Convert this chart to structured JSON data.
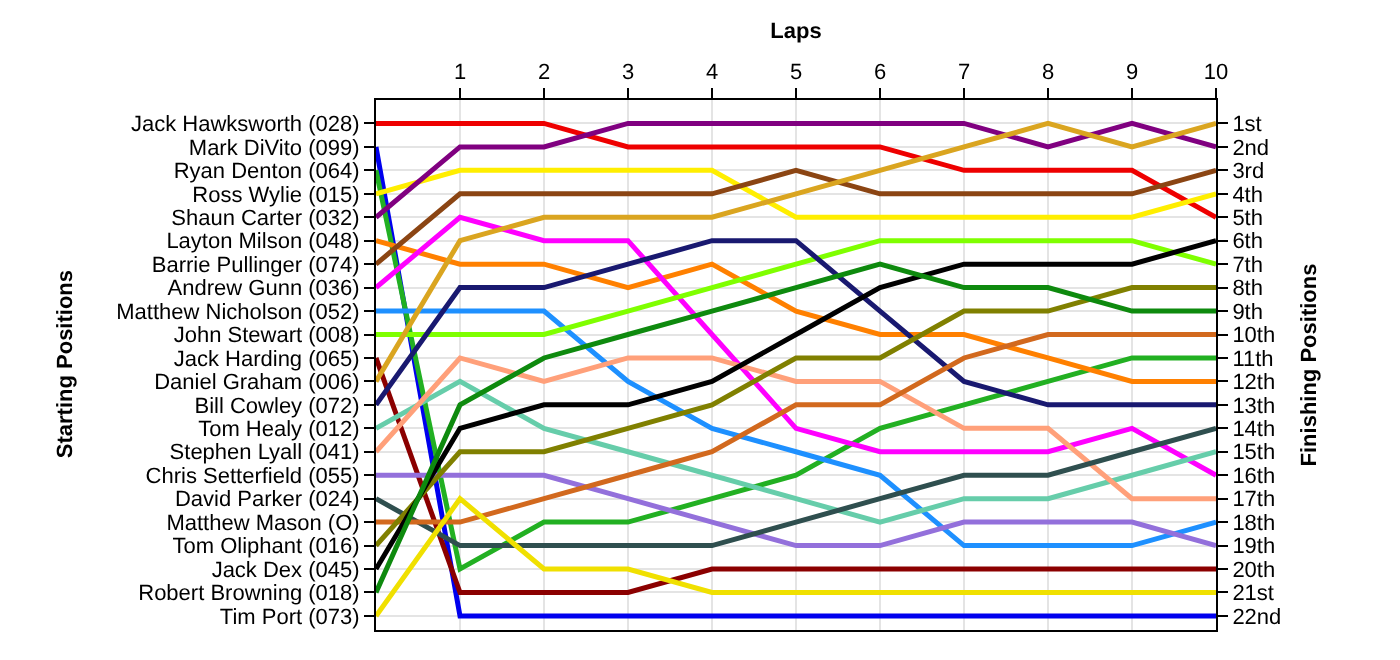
{
  "chart_data": {
    "type": "line",
    "xlabel": "Laps",
    "annotations": [
      "Starting Positions"
    ],
    "y2label": "Finishing Positions",
    "x": [
      0,
      1,
      2,
      3,
      4,
      5,
      6,
      7,
      8,
      9,
      10
    ],
    "xlim": [
      0,
      10
    ],
    "xticks": [
      1,
      2,
      3,
      4,
      5,
      6,
      7,
      8,
      9,
      10
    ],
    "y_categories": [
      "Jack Hawksworth (028)",
      "Mark DiVito (099)",
      "Ryan Denton (064)",
      "Ross Wylie (015)",
      "Shaun Carter (032)",
      "Layton Milson (048)",
      "Barrie Pullinger (074)",
      "Andrew Gunn (036)",
      "Matthew Nicholson (052)",
      "John Stewart (008)",
      "Jack Harding (065)",
      "Daniel Graham (006)",
      "Bill Cowley (072)",
      "Tom Healy (012)",
      "Stephen Lyall (041)",
      "Chris Setterfield (055)",
      "David Parker (024)",
      "Matthew Mason (O)",
      "Tom Oliphant (016)",
      "Jack Dex (045)",
      "Robert Browning (018)",
      "Tim Port (073)"
    ],
    "y2lim": [
      22.6,
      0
    ],
    "y2ticks": [
      {
        "value": 1,
        "label": "1st"
      },
      {
        "value": 2,
        "label": "2nd"
      },
      {
        "value": 3,
        "label": "3rd"
      },
      {
        "value": 4,
        "label": "4th"
      },
      {
        "value": 5,
        "label": "5th"
      },
      {
        "value": 6,
        "label": "6th"
      },
      {
        "value": 7,
        "label": "7th"
      },
      {
        "value": 8,
        "label": "8th"
      },
      {
        "value": 9,
        "label": "9th"
      },
      {
        "value": 10,
        "label": "10th"
      },
      {
        "value": 11,
        "label": "11th"
      },
      {
        "value": 12,
        "label": "12th"
      },
      {
        "value": 13,
        "label": "13th"
      },
      {
        "value": 14,
        "label": "14th"
      },
      {
        "value": 15,
        "label": "15th"
      },
      {
        "value": 16,
        "label": "16th"
      },
      {
        "value": 17,
        "label": "17th"
      },
      {
        "value": 18,
        "label": "18th"
      },
      {
        "value": 19,
        "label": "19th"
      },
      {
        "value": 20,
        "label": "20th"
      },
      {
        "value": 21,
        "label": "21st"
      },
      {
        "value": 22,
        "label": "22nd"
      }
    ],
    "grid": true,
    "marker": "none",
    "line_style": "solid",
    "series": [
      {
        "axis": "y2",
        "color": "#ee0000",
        "values": [
          1,
          1,
          1,
          2,
          2,
          2,
          2,
          3,
          3,
          3,
          5
        ]
      },
      {
        "axis": "y2",
        "color": "#0000ee",
        "values": [
          2,
          22,
          22,
          22,
          22,
          22,
          22,
          22,
          22,
          22,
          22
        ]
      },
      {
        "axis": "y2",
        "color": "#22b022",
        "values": [
          3,
          20,
          18,
          18,
          17,
          16,
          14,
          13,
          12,
          11,
          11
        ]
      },
      {
        "axis": "y2",
        "color": "#ffee00",
        "values": [
          4,
          3,
          3,
          3,
          3,
          5,
          5,
          5,
          5,
          5,
          4
        ]
      },
      {
        "axis": "y2",
        "color": "#800080",
        "values": [
          5,
          2,
          2,
          1,
          1,
          1,
          1,
          1,
          2,
          1,
          2
        ]
      },
      {
        "axis": "y2",
        "color": "#ff8000",
        "values": [
          6,
          7,
          7,
          8,
          7,
          9,
          10,
          10,
          11,
          12,
          12
        ]
      },
      {
        "axis": "y2",
        "color": "#8b4513",
        "values": [
          7,
          4,
          4,
          4,
          4,
          3,
          4,
          4,
          4,
          4,
          3
        ]
      },
      {
        "axis": "y2",
        "color": "#ff00ff",
        "values": [
          8,
          5,
          6,
          6,
          10,
          14,
          15,
          15,
          15,
          14,
          16
        ]
      },
      {
        "axis": "y2",
        "color": "#1e90ff",
        "values": [
          9,
          9,
          9,
          12,
          14,
          15,
          16,
          19,
          19,
          19,
          18
        ]
      },
      {
        "axis": "y2",
        "color": "#7fff00",
        "values": [
          10,
          10,
          10,
          9,
          8,
          7,
          6,
          6,
          6,
          6,
          7
        ]
      },
      {
        "axis": "y2",
        "color": "#8b0000",
        "values": [
          11,
          21,
          21,
          21,
          20,
          20,
          20,
          20,
          20,
          20,
          20
        ]
      },
      {
        "axis": "y2",
        "color": "#daa520",
        "values": [
          12,
          6,
          5,
          5,
          5,
          4,
          3,
          2,
          1,
          2,
          1
        ]
      },
      {
        "axis": "y2",
        "color": "#191970",
        "values": [
          13,
          8,
          8,
          7,
          6,
          6,
          9,
          12,
          13,
          13,
          13
        ]
      },
      {
        "axis": "y2",
        "color": "#66cdaa",
        "values": [
          14,
          12,
          14,
          15,
          16,
          17,
          18,
          17,
          17,
          16,
          15
        ]
      },
      {
        "axis": "y2",
        "color": "#ffa07a",
        "values": [
          15,
          11,
          12,
          11,
          11,
          12,
          12,
          14,
          14,
          17,
          17
        ]
      },
      {
        "axis": "y2",
        "color": "#9370db",
        "values": [
          16,
          16,
          16,
          17,
          18,
          19,
          19,
          18,
          18,
          18,
          19
        ]
      },
      {
        "axis": "y2",
        "color": "#2f4f4f",
        "values": [
          17,
          19,
          19,
          19,
          19,
          18,
          17,
          16,
          16,
          15,
          14
        ]
      },
      {
        "axis": "y2",
        "color": "#d2691e",
        "values": [
          18,
          18,
          17,
          16,
          15,
          13,
          13,
          11,
          10,
          10,
          10
        ]
      },
      {
        "axis": "y2",
        "color": "#808000",
        "values": [
          19,
          15,
          15,
          14,
          13,
          11,
          11,
          9,
          9,
          8,
          8
        ]
      },
      {
        "axis": "y2",
        "color": "#000000",
        "values": [
          20,
          14,
          13,
          13,
          12,
          10,
          8,
          7,
          7,
          7,
          6
        ]
      },
      {
        "axis": "y2",
        "color": "#0e8a0e",
        "values": [
          21,
          13,
          11,
          10,
          9,
          8,
          7,
          8,
          8,
          9,
          9
        ]
      },
      {
        "axis": "y2",
        "color": "#f0e000",
        "values": [
          22,
          17,
          20,
          20,
          21,
          21,
          21,
          21,
          21,
          21,
          21
        ]
      }
    ]
  }
}
